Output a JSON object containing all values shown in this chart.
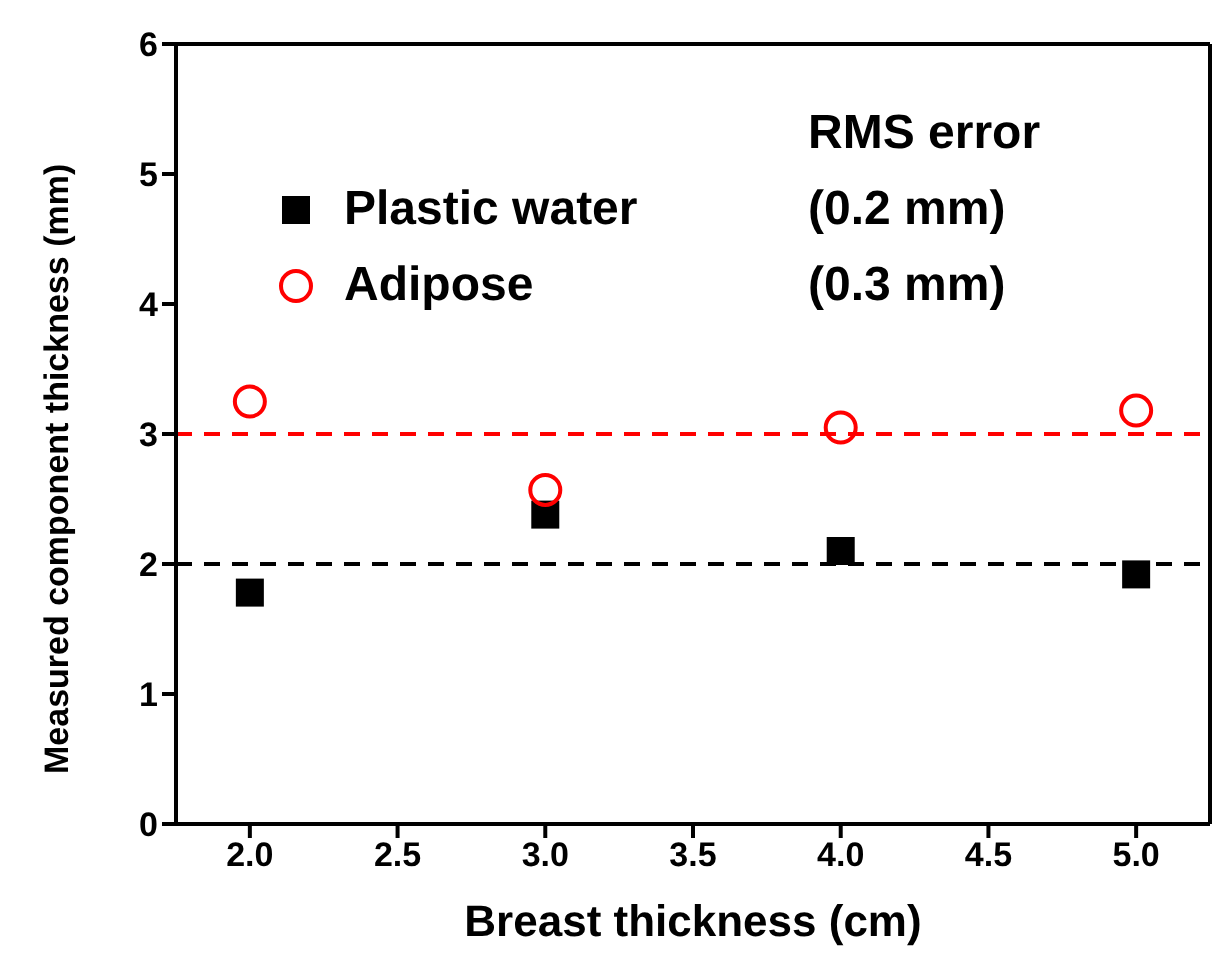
{
  "chart_data": {
    "type": "scatter",
    "xlabel": "Breast thickness (cm)",
    "ylabel": "Measured component thickness (mm)",
    "legend_title": "RMS error",
    "annotations": [
      "(0.2 mm)",
      "(0.3 mm)"
    ],
    "x": [
      2,
      3,
      4,
      5
    ],
    "series": [
      {
        "name": "Plastic water",
        "color": "#000000",
        "marker": "square",
        "values": [
          1.78,
          2.38,
          2.1,
          1.92
        ]
      },
      {
        "name": "Adipose",
        "color": "#ff0000",
        "marker": "circle",
        "values": [
          3.25,
          2.57,
          3.05,
          3.18
        ]
      }
    ],
    "ref_lines": [
      {
        "axis": "y",
        "value": 2,
        "label": null,
        "color": "#000000",
        "line_style": "dashed"
      },
      {
        "axis": "y",
        "value": 3,
        "label": null,
        "color": "#ff0000",
        "line_style": "dashed"
      }
    ],
    "xlim": [
      1.75,
      5.25
    ],
    "xticks": [
      {
        "value": 2,
        "label": "2.0"
      },
      2.5,
      {
        "value": 3,
        "label": "3.0"
      },
      3.5,
      {
        "value": 4,
        "label": "4.0"
      },
      4.5,
      {
        "value": 5,
        "label": "5.0"
      }
    ],
    "ylim": [
      0,
      6
    ],
    "yticks": [
      0,
      1,
      2,
      3,
      4,
      5,
      6
    ],
    "legend": "top"
  }
}
